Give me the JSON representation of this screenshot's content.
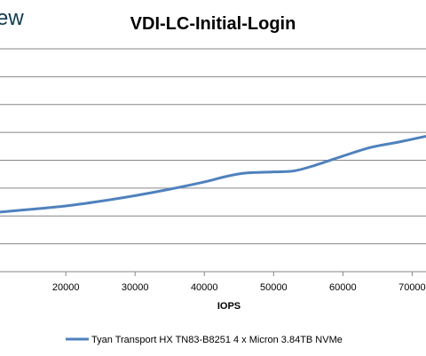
{
  "logo_fragment": "ew",
  "chart_data": {
    "type": "line",
    "title": "VDI-LC-Initial-Login",
    "xlabel": "IOPS",
    "ylabel": "",
    "x_ticks": [
      20000,
      30000,
      40000,
      50000,
      60000,
      70000
    ],
    "xlim": [
      10500,
      72000
    ],
    "ylim": [
      0,
      8
    ],
    "grid": true,
    "legend_position": "bottom",
    "series": [
      {
        "name": "Tyan Transport HX TN83-B8251 4 x Micron 3.84TB NVMe",
        "color": "#4F81BD",
        "points": [
          [
            10500,
            2.14
          ],
          [
            15000,
            2.24
          ],
          [
            20000,
            2.36
          ],
          [
            25000,
            2.53
          ],
          [
            30000,
            2.73
          ],
          [
            35000,
            2.96
          ],
          [
            40000,
            3.22
          ],
          [
            43000,
            3.41
          ],
          [
            46000,
            3.54
          ],
          [
            50000,
            3.58
          ],
          [
            53000,
            3.62
          ],
          [
            56000,
            3.82
          ],
          [
            60000,
            4.15
          ],
          [
            64000,
            4.46
          ],
          [
            68000,
            4.65
          ],
          [
            72000,
            4.86
          ]
        ]
      }
    ]
  }
}
